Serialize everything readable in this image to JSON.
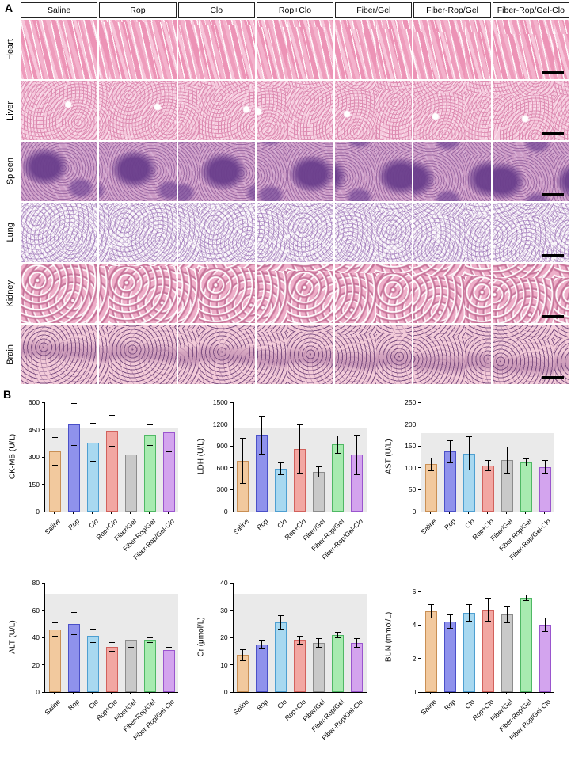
{
  "figure": {
    "panel_a_label": "A",
    "panel_b_label": "B"
  },
  "histology": {
    "columns": [
      "Saline",
      "Rop",
      "Clo",
      "Rop+Clo",
      "Fiber/Gel",
      "Fiber-Rop/Gel",
      "Fiber-Rop/Gel-Clo"
    ],
    "rows": [
      "Heart",
      "Liver",
      "Spleen",
      "Lung",
      "Kidney",
      "Brain"
    ],
    "scale_bar_color": "#000000",
    "stain_colors": {
      "heart": "#f0a3c0",
      "liver": "#f5c9dd",
      "spleen": "#cd9cc6",
      "lung": "#faf7fa",
      "kidney": "#eeafc9",
      "brain": "#f3cbd9"
    }
  },
  "groups": [
    "Saline",
    "Rop",
    "Clo",
    "Rop+Clo",
    "Fiber/Gel",
    "Fiber-Rop/Gel",
    "Fiber-Rop/Gel-Clo"
  ],
  "group_colors": [
    {
      "fill": "#f2c99e",
      "stroke": "#c98f54"
    },
    {
      "fill": "#8f92ec",
      "stroke": "#4a50c8"
    },
    {
      "fill": "#a8d8f0",
      "stroke": "#4e9fd1"
    },
    {
      "fill": "#f2a7a2",
      "stroke": "#d2615c"
    },
    {
      "fill": "#c9c9c9",
      "stroke": "#8c8c8c"
    },
    {
      "fill": "#a8ebb0",
      "stroke": "#4fb864"
    },
    {
      "fill": "#d3a4ee",
      "stroke": "#9a55ce"
    }
  ],
  "band_color": "#eaeaea",
  "chart_data": [
    {
      "type": "bar",
      "ylabel": "CK-MB (U/L)",
      "categories": [
        "Saline",
        "Rop",
        "Clo",
        "Rop+Clo",
        "Fiber/Gel",
        "Fiber-Rop/Gel",
        "Fiber-Rop/Gel-Clo"
      ],
      "values": [
        330,
        480,
        380,
        445,
        315,
        420,
        435
      ],
      "errors": [
        75,
        115,
        105,
        85,
        85,
        55,
        105
      ],
      "ylim": [
        0,
        600
      ],
      "yticks": [
        0,
        150,
        300,
        450,
        600
      ],
      "band_top": 455
    },
    {
      "type": "bar",
      "ylabel": "LDH (U/L)",
      "categories": [
        "Saline",
        "Rop",
        "Clo",
        "Rop+Clo",
        "Fiber/Gel",
        "Fiber-Rop/Gel",
        "Fiber-Rop/Gel-Clo"
      ],
      "values": [
        700,
        1050,
        590,
        860,
        540,
        920,
        780
      ],
      "errors": [
        310,
        260,
        80,
        330,
        70,
        120,
        270
      ],
      "ylim": [
        0,
        1500
      ],
      "yticks": [
        0,
        300,
        600,
        900,
        1200,
        1500
      ],
      "band_top": 1150
    },
    {
      "type": "bar",
      "ylabel": "AST (U/L)",
      "categories": [
        "Saline",
        "Rop",
        "Clo",
        "Rop+Clo",
        "Fiber/Gel",
        "Fiber-Rop/Gel",
        "Fiber-Rop/Gel-Clo"
      ],
      "values": [
        108,
        137,
        133,
        105,
        118,
        112,
        102
      ],
      "errors": [
        15,
        25,
        38,
        12,
        30,
        8,
        15
      ],
      "ylim": [
        0,
        250
      ],
      "yticks": [
        0,
        50,
        100,
        150,
        200,
        250
      ],
      "band_top": 180
    },
    {
      "type": "bar",
      "ylabel": "ALT (U/L)",
      "categories": [
        "Saline",
        "Rop",
        "Clo",
        "Rop+Clo",
        "Fiber/Gel",
        "Fiber-Rop/Gel",
        "Fiber-Rop/Gel-Clo"
      ],
      "values": [
        46,
        50,
        41,
        33,
        38,
        38,
        31
      ],
      "errors": [
        5,
        8,
        5,
        3,
        5,
        2,
        2
      ],
      "ylim": [
        0,
        80
      ],
      "yticks": [
        0,
        20,
        40,
        60,
        80
      ],
      "band_top": 72
    },
    {
      "type": "bar",
      "ylabel": "Cr (μmol/L)",
      "categories": [
        "Saline",
        "Rop",
        "Clo",
        "Rop+Clo",
        "Fiber/Gel",
        "Fiber-Rop/Gel",
        "Fiber-Rop/Gel-Clo"
      ],
      "values": [
        13.5,
        17.5,
        25.5,
        19,
        18,
        21,
        18
      ],
      "errors": [
        2,
        1.5,
        2.5,
        1.5,
        1.5,
        1,
        1.5
      ],
      "ylim": [
        0,
        40
      ],
      "yticks": [
        0,
        10,
        20,
        30,
        40
      ],
      "band_top": 36
    },
    {
      "type": "bar",
      "ylabel": "BUN (mmol/L)",
      "categories": [
        "Saline",
        "Rop",
        "Clo",
        "Rop+Clo",
        "Fiber/Gel",
        "Fiber-Rop/Gel",
        "Fiber-Rop/Gel-Clo"
      ],
      "values": [
        4.8,
        4.2,
        4.7,
        4.9,
        4.6,
        5.6,
        4.0
      ],
      "errors": [
        0.4,
        0.4,
        0.5,
        0.7,
        0.5,
        0.15,
        0.4
      ],
      "ylim": [
        0,
        6.5
      ],
      "yticks": [
        0,
        2,
        4,
        6
      ],
      "band_top": null
    }
  ]
}
